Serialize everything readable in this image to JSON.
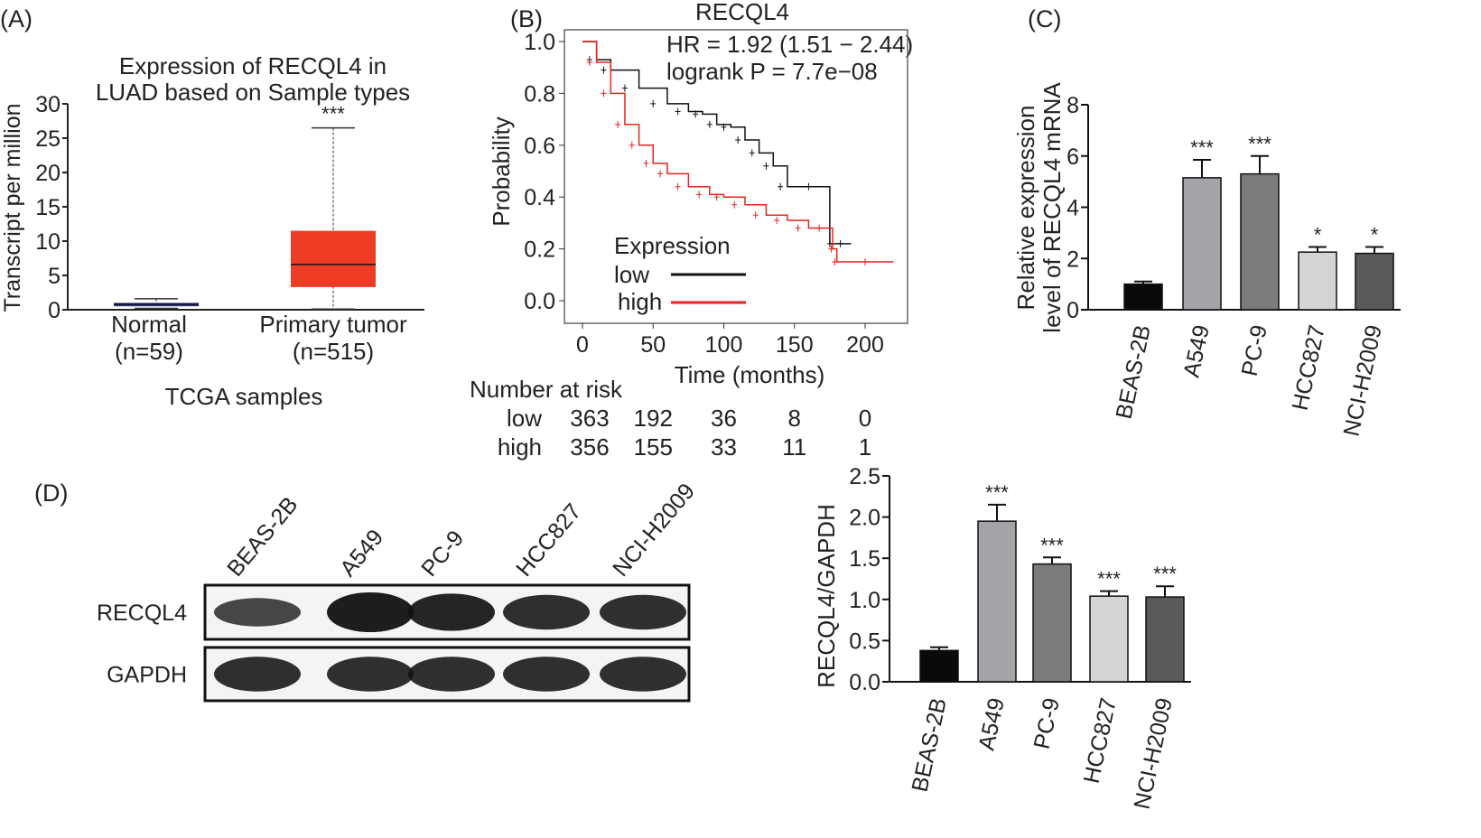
{
  "panel_labels": {
    "a": "(A)",
    "b": "(B)",
    "c": "(C)",
    "d": "(D)"
  },
  "chart_data": [
    {
      "id": "A",
      "type": "box",
      "title_line1": "Expression of RECQL4 in",
      "title_line2": "LUAD based on Sample types",
      "ylabel": "Transcript per million",
      "xlabel": "TCGA samples",
      "ylim": [
        0,
        30
      ],
      "yticks": [
        "0",
        "5",
        "10",
        "15",
        "20",
        "25",
        "30"
      ],
      "groups": [
        {
          "name": "Normal",
          "n": "(n=59)",
          "min": 0.2,
          "q1": 0.5,
          "median": 0.8,
          "q3": 1.0,
          "max": 1.6,
          "color": "#2b3a8c",
          "sig": ""
        },
        {
          "name": "Primary tumor",
          "n": "(n=515)",
          "min": 0.1,
          "q1": 3.3,
          "median": 6.6,
          "q3": 11.5,
          "max": 26.5,
          "color": "#ee3b24",
          "sig": "***"
        }
      ]
    },
    {
      "id": "B",
      "type": "line",
      "title": "RECQL4",
      "hr_text": "HR = 1.92 (1.51 − 2.44)",
      "p_text": "logrank P = 7.7e−08",
      "xlabel": "Time (months)",
      "ylabel": "Probability",
      "xlim": [
        0,
        220
      ],
      "ylim": [
        0,
        1
      ],
      "xticks": [
        "0",
        "50",
        "100",
        "150",
        "200"
      ],
      "yticks": [
        "0.0",
        "0.2",
        "0.4",
        "0.6",
        "0.8",
        "1.0"
      ],
      "legend_title": "Expression",
      "series": [
        {
          "name": "low",
          "color": "#111111",
          "x": [
            0,
            10,
            20,
            40,
            60,
            75,
            85,
            95,
            105,
            115,
            125,
            135,
            145,
            175,
            175,
            190
          ],
          "y": [
            1.0,
            0.93,
            0.89,
            0.82,
            0.76,
            0.73,
            0.72,
            0.68,
            0.67,
            0.62,
            0.57,
            0.52,
            0.44,
            0.44,
            0.22,
            0.22
          ]
        },
        {
          "name": "high",
          "color": "#e8231c",
          "x": [
            0,
            10,
            20,
            30,
            40,
            50,
            60,
            75,
            90,
            100,
            115,
            130,
            145,
            160,
            175,
            177,
            180,
            220
          ],
          "y": [
            1.0,
            0.92,
            0.8,
            0.68,
            0.6,
            0.53,
            0.49,
            0.44,
            0.41,
            0.4,
            0.37,
            0.33,
            0.31,
            0.28,
            0.28,
            0.2,
            0.15,
            0.15
          ]
        }
      ],
      "risk_table": {
        "title": "Number at risk",
        "rows": [
          {
            "label": "low",
            "values": [
              "363",
              "192",
              "36",
              "8",
              "0"
            ]
          },
          {
            "label": "high",
            "values": [
              "356",
              "155",
              "33",
              "11",
              "1"
            ]
          }
        ]
      }
    },
    {
      "id": "C",
      "type": "bar",
      "ylabel_line1": "Relative expression",
      "ylabel_line2": "level of RECQL4 mRNA",
      "ylim": [
        0,
        8
      ],
      "yticks": [
        "0",
        "2",
        "4",
        "6",
        "8"
      ],
      "categories": [
        "BEAS-2B",
        "A549",
        "PC-9",
        "HCC827",
        "NCI-H2009"
      ],
      "values": [
        1.0,
        5.15,
        5.3,
        2.25,
        2.2
      ],
      "errors": [
        0.1,
        0.7,
        0.7,
        0.2,
        0.25
      ],
      "significance": [
        "",
        "***",
        "***",
        "*",
        "*"
      ],
      "colors": [
        "#0a0a0a",
        "#a3a3a8",
        "#7b7b7b",
        "#d4d4d4",
        "#5a5a5a"
      ]
    },
    {
      "id": "D",
      "type": "bar",
      "ylabel": "RECQL4/GAPDH",
      "ylim": [
        0,
        2.5
      ],
      "yticks": [
        "0.0",
        "0.5",
        "1.0",
        "1.5",
        "2.0",
        "2.5"
      ],
      "categories": [
        "BEAS-2B",
        "A549",
        "PC-9",
        "HCC827",
        "NCI-H2009"
      ],
      "values": [
        0.38,
        1.95,
        1.43,
        1.04,
        1.03
      ],
      "errors": [
        0.04,
        0.2,
        0.08,
        0.06,
        0.13
      ],
      "significance": [
        "",
        "***",
        "***",
        "***",
        "***"
      ],
      "colors": [
        "#0a0a0a",
        "#a3a3a8",
        "#7b7b7b",
        "#d4d4d4",
        "#5a5a5a"
      ]
    }
  ],
  "western_blot": {
    "lanes": [
      "BEAS-2B",
      "A549",
      "PC-9",
      "HCC827",
      "NCI-H2009"
    ],
    "rows": [
      {
        "label": "RECQL4",
        "intensity": [
          0.55,
          1.0,
          0.9,
          0.8,
          0.8
        ]
      },
      {
        "label": "GAPDH",
        "intensity": [
          0.8,
          0.8,
          0.8,
          0.8,
          0.8
        ]
      }
    ]
  }
}
